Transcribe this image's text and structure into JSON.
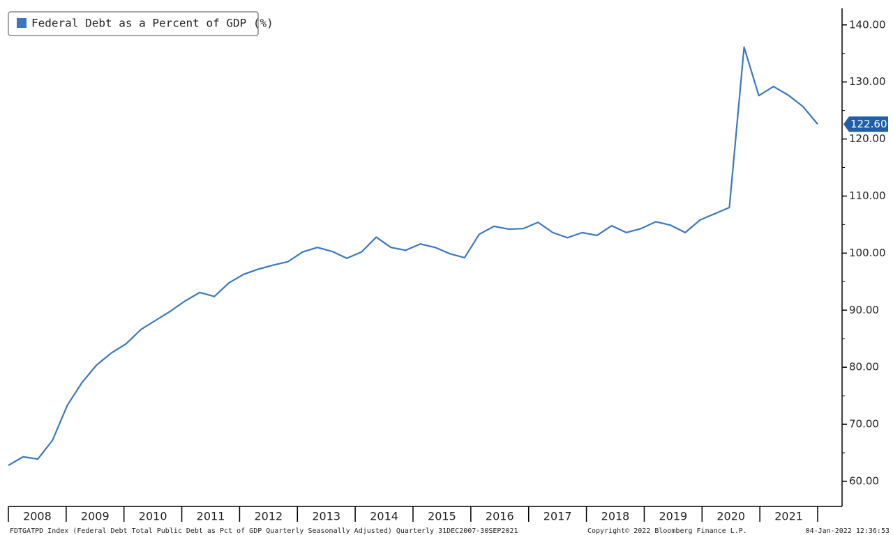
{
  "chart_data": {
    "type": "line",
    "legend_position": "top-left",
    "years": [
      "2008",
      "2009",
      "2010",
      "2011",
      "2012",
      "2013",
      "2014",
      "2015",
      "2016",
      "2017",
      "2018",
      "2019",
      "2020",
      "2021"
    ],
    "series": [
      {
        "name": "Federal Debt as a Percent of GDP (%)",
        "color": "#3a78bd",
        "values": [
          62.8,
          64.3,
          63.9,
          67.2,
          73.3,
          77.3,
          80.4,
          82.5,
          84.1,
          86.6,
          88.2,
          89.8,
          91.6,
          93.1,
          92.4,
          94.8,
          96.3,
          97.2,
          97.9,
          98.5,
          100.2,
          101.0,
          100.3,
          99.1,
          100.2,
          102.8,
          101.0,
          100.5,
          101.6,
          101.0,
          99.9,
          99.2,
          103.3,
          104.7,
          104.2,
          104.3,
          105.4,
          103.6,
          102.7,
          103.6,
          103.1,
          104.8,
          103.6,
          104.3,
          105.5,
          104.9,
          103.6,
          105.8,
          106.9,
          108.0,
          136.1,
          127.6,
          129.2,
          127.7,
          125.7,
          122.6
        ],
        "value_labels": [
          null,
          null,
          null,
          null,
          null,
          null,
          null,
          null,
          null,
          null,
          null,
          null,
          null,
          null,
          null,
          null,
          null,
          null,
          null,
          null,
          null,
          null,
          null,
          null,
          null,
          null,
          null,
          null,
          null,
          null,
          null,
          null,
          null,
          null,
          null,
          null,
          null,
          null,
          null,
          null,
          null,
          null,
          null,
          null,
          null,
          null,
          null,
          null,
          null,
          null,
          null,
          null,
          null,
          null,
          null,
          "122.60"
        ]
      }
    ],
    "ylim": [
      55.6,
      142.9
    ],
    "yticks": [
      {
        "value": 60,
        "label": "60.00"
      },
      {
        "value": 70,
        "label": "70.00"
      },
      {
        "value": 80,
        "label": "80.00"
      },
      {
        "value": 90,
        "label": "90.00"
      },
      {
        "value": 100,
        "label": "100.00"
      },
      {
        "value": 110,
        "label": "110.00"
      },
      {
        "value": 120,
        "label": "120.00"
      },
      {
        "value": 130,
        "label": "130.00"
      },
      {
        "value": 140,
        "label": "140.00"
      }
    ],
    "footer_source": "FDTGATPD Index (Federal Debt Total Public Debt as Pct of GDP Quarterly Seasonally Adjusted) Quarterly 31DEC2007-30SEP2021",
    "footer_copyright": "Copyright© 2022 Bloomberg Finance L.P.",
    "footer_date": "04-Jan-2022 12:36:53"
  }
}
